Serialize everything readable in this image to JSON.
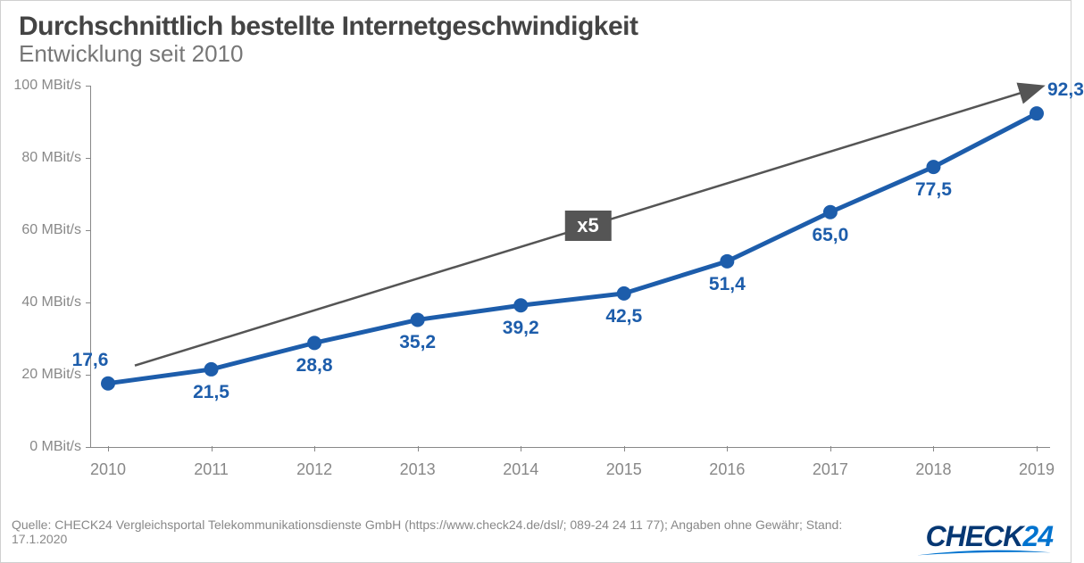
{
  "title": "Durchschnittlich bestellte Internetgeschwindigkeit",
  "subtitle": "Entwicklung seit 2010",
  "chart": {
    "type": "line",
    "series_color": "#1d5dab",
    "marker_fill": "#1d5dab",
    "line_width": 5,
    "marker_radius": 8,
    "background_color": "#ffffff",
    "axis_color": "#888888",
    "label_fontsize": 21,
    "categories": [
      "2010",
      "2011",
      "2012",
      "2013",
      "2014",
      "2015",
      "2016",
      "2017",
      "2018",
      "2019"
    ],
    "values": [
      17.6,
      21.5,
      28.8,
      35.2,
      39.2,
      42.5,
      51.4,
      65.0,
      77.5,
      92.3
    ],
    "value_labels": [
      "17,6",
      "21,5",
      "28,8",
      "35,2",
      "39,2",
      "42,5",
      "51,4",
      "65,0",
      "77,5",
      "92,3"
    ],
    "label_positions": [
      "above",
      "below",
      "below",
      "below",
      "below",
      "below",
      "below",
      "below",
      "below",
      "above-right"
    ],
    "y_ticks": [
      0,
      20,
      40,
      60,
      80,
      100
    ],
    "y_tick_labels": [
      "0 MBit/s",
      "20 MBit/s",
      "40 MBit/s",
      "60 MBit/s",
      "80 MBit/s",
      "100 MBit/s"
    ],
    "ylim": [
      0,
      100
    ],
    "arrow_color": "#555555",
    "multiplier_label": "x5",
    "multiplier_bg": "#555555"
  },
  "source_text": "Quelle: CHECK24 Vergleichsportal Telekommunikationsdienste GmbH (https://www.check24.de/dsl/; 089-24 24 11 77); Angaben ohne Gewähr; Stand: 17.1.2020",
  "logo": {
    "part1": "CHECK",
    "part2": "24",
    "color1": "#063773",
    "color2": "#0073cf"
  }
}
